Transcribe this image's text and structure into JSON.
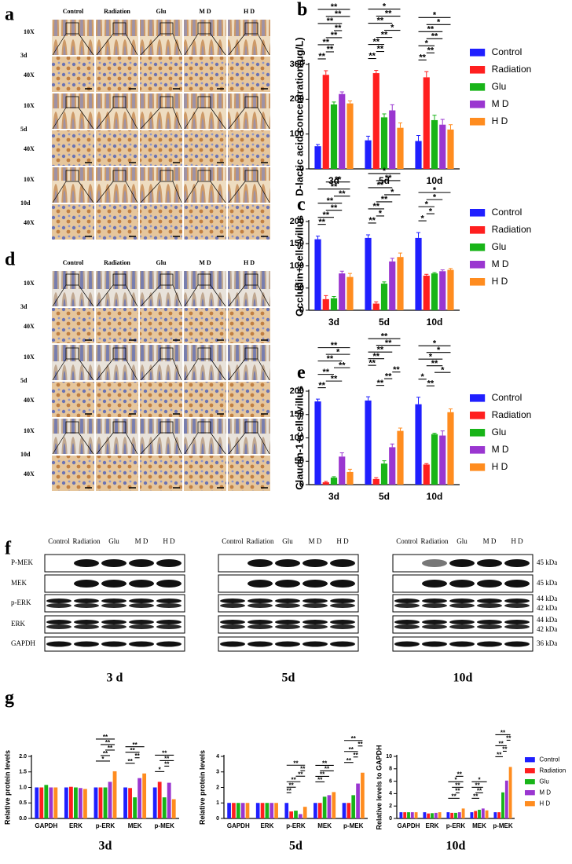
{
  "panel_labels": [
    "a",
    "b",
    "c",
    "d",
    "e",
    "f",
    "g"
  ],
  "histology": {
    "groups": [
      "Control",
      "Radiation",
      "Glu",
      "M D",
      "H D"
    ],
    "timepoints": [
      "3d",
      "5d",
      "10d"
    ],
    "magnifications": [
      "10X",
      "40X"
    ]
  },
  "western": {
    "groups": [
      "Control",
      "Radiation",
      "Glu",
      "M D",
      "H D"
    ],
    "proteins": [
      "P-MEK",
      "MEK",
      "p-ERK",
      "ERK",
      "GAPDH"
    ],
    "sizes": [
      "45 kDa",
      "45 kDa",
      "44 kDa",
      "42 kDa",
      "44 kDa",
      "42 kDa",
      "36 kDa"
    ],
    "timepoints": [
      "3 d",
      "5d",
      "10d"
    ]
  },
  "chart_data": [
    {
      "type": "bar",
      "y_label": "D-lactic acid concentration(μg/L)",
      "categories": [
        "3d",
        "5d",
        "10d"
      ],
      "series": [
        {
          "name": "Control",
          "color": "#1f1fff",
          "values": [
            65,
            82,
            80
          ],
          "errors": [
            5,
            12,
            16
          ]
        },
        {
          "name": "Radiation",
          "color": "#ff1f1f",
          "values": [
            270,
            275,
            263
          ],
          "errors": [
            12,
            8,
            16
          ]
        },
        {
          "name": "Glu",
          "color": "#18b418",
          "values": [
            185,
            148,
            140
          ],
          "errors": [
            7,
            10,
            14
          ]
        },
        {
          "name": "M D",
          "color": "#9a36d0",
          "values": [
            215,
            168,
            127
          ],
          "errors": [
            6,
            16,
            15
          ]
        },
        {
          "name": "H D",
          "color": "#ff8c1f",
          "values": [
            188,
            118,
            113
          ],
          "errors": [
            7,
            14,
            14
          ]
        }
      ],
      "ylim": [
        0,
        300
      ],
      "yticks": [
        0,
        100,
        200,
        300
      ],
      "legend": "right",
      "annotations": [
        [
          "3d",
          "Control",
          "Radiation",
          "**"
        ],
        [
          "3d",
          "Radiation",
          "Glu",
          "**"
        ],
        [
          "3d",
          "Control",
          "Glu",
          "**"
        ],
        [
          "3d",
          "Radiation",
          "M D",
          "**"
        ],
        [
          "3d",
          "Glu",
          "M D",
          "**"
        ],
        [
          "3d",
          "Control",
          "M D",
          "**"
        ],
        [
          "3d",
          "Radiation",
          "H D",
          "**"
        ],
        [
          "3d",
          "Control",
          "H D",
          "**"
        ],
        [
          "5d",
          "Control",
          "Radiation",
          "**"
        ],
        [
          "5d",
          "Radiation",
          "Glu",
          "**"
        ],
        [
          "5d",
          "Control",
          "Glu",
          "**"
        ],
        [
          "5d",
          "Radiation",
          "M D",
          "**"
        ],
        [
          "5d",
          "Glu",
          "H D",
          "*"
        ],
        [
          "5d",
          "Control",
          "M D",
          "**"
        ],
        [
          "5d",
          "Radiation",
          "H D",
          "**"
        ],
        [
          "5d",
          "Control",
          "H D",
          "*"
        ],
        [
          "10d",
          "Control",
          "Radiation",
          "**"
        ],
        [
          "10d",
          "Radiation",
          "Glu",
          "**"
        ],
        [
          "10d",
          "Control",
          "Glu",
          "*"
        ],
        [
          "10d",
          "Radiation",
          "M D",
          "**"
        ],
        [
          "10d",
          "Control",
          "M D",
          "**"
        ],
        [
          "10d",
          "Radiation",
          "H D",
          "*"
        ],
        [
          "10d",
          "Control",
          "H D",
          "*"
        ]
      ]
    },
    {
      "type": "bar",
      "y_label": "Occludin+cells/villus",
      "categories": [
        "3d",
        "5d",
        "10d"
      ],
      "series": [
        {
          "name": "Control",
          "color": "#1f1fff",
          "values": [
            160,
            163,
            163
          ],
          "errors": [
            7,
            7,
            12
          ]
        },
        {
          "name": "Radiation",
          "color": "#ff1f1f",
          "values": [
            25,
            15,
            78
          ],
          "errors": [
            8,
            4,
            3
          ]
        },
        {
          "name": "Glu",
          "color": "#18b418",
          "values": [
            27,
            60,
            83
          ],
          "errors": [
            4,
            4,
            2
          ]
        },
        {
          "name": "M D",
          "color": "#9a36d0",
          "values": [
            83,
            110,
            88
          ],
          "errors": [
            5,
            7,
            3
          ]
        },
        {
          "name": "H D",
          "color": "#ff8c1f",
          "values": [
            75,
            120,
            91
          ],
          "errors": [
            8,
            9,
            3
          ]
        }
      ],
      "ylim": [
        0,
        200
      ],
      "yticks": [
        0,
        50,
        100,
        150,
        200
      ],
      "legend": "right",
      "annotations": [
        [
          "3d",
          "Control",
          "Radiation",
          "**"
        ],
        [
          "3d",
          "Control",
          "Glu",
          "**"
        ],
        [
          "3d",
          "Radiation",
          "M D",
          "**"
        ],
        [
          "3d",
          "Control",
          "M D",
          "**"
        ],
        [
          "3d",
          "Glu",
          "H D",
          "**"
        ],
        [
          "3d",
          "Control",
          "H D",
          "**"
        ],
        [
          "3d",
          "Radiation",
          "H D",
          "**"
        ],
        [
          "5d",
          "Control",
          "Radiation",
          "**"
        ],
        [
          "5d",
          "Radiation",
          "Glu",
          "*"
        ],
        [
          "5d",
          "Control",
          "Glu",
          "**"
        ],
        [
          "5d",
          "Radiation",
          "M D",
          "**"
        ],
        [
          "5d",
          "Glu",
          "H D",
          "*"
        ],
        [
          "5d",
          "Control",
          "M D",
          "**"
        ],
        [
          "5d",
          "Radiation",
          "H D",
          "**"
        ],
        [
          "5d",
          "Control",
          "H D",
          "*"
        ],
        [
          "10d",
          "Control",
          "Radiation",
          "*"
        ],
        [
          "10d",
          "Radiation",
          "Glu",
          "*"
        ],
        [
          "10d",
          "Control",
          "Glu",
          "*"
        ],
        [
          "10d",
          "Radiation",
          "M D",
          "*"
        ],
        [
          "10d",
          "Control",
          "H D",
          "*"
        ]
      ]
    },
    {
      "type": "bar",
      "y_label": "Claudin-1+cells/villus",
      "categories": [
        "3d",
        "5d",
        "10d"
      ],
      "series": [
        {
          "name": "Control",
          "color": "#1f1fff",
          "values": [
            178,
            180,
            172
          ],
          "errors": [
            5,
            8,
            15
          ]
        },
        {
          "name": "Radiation",
          "color": "#ff1f1f",
          "values": [
            5,
            12,
            43
          ],
          "errors": [
            2,
            3,
            2
          ]
        },
        {
          "name": "Glu",
          "color": "#18b418",
          "values": [
            15,
            45,
            108
          ],
          "errors": [
            2,
            6,
            2
          ]
        },
        {
          "name": "M D",
          "color": "#9a36d0",
          "values": [
            60,
            80,
            105
          ],
          "errors": [
            8,
            7,
            10
          ]
        },
        {
          "name": "H D",
          "color": "#ff8c1f",
          "values": [
            27,
            115,
            155
          ],
          "errors": [
            6,
            6,
            7
          ]
        }
      ],
      "ylim": [
        0,
        200
      ],
      "yticks": [
        0,
        50,
        100,
        150,
        200
      ],
      "legend": "right",
      "annotations": [
        [
          "3d",
          "Control",
          "Radiation",
          "**"
        ],
        [
          "3d",
          "Radiation",
          "M D",
          "**"
        ],
        [
          "3d",
          "Control",
          "Glu",
          "**"
        ],
        [
          "3d",
          "Glu",
          "H D",
          "**"
        ],
        [
          "3d",
          "Control",
          "M D",
          "**"
        ],
        [
          "3d",
          "Radiation",
          "H D",
          "*"
        ],
        [
          "3d",
          "Control",
          "H D",
          "**"
        ],
        [
          "5d",
          "Radiation",
          "Glu",
          "**"
        ],
        [
          "5d",
          "Glu",
          "M D",
          "**"
        ],
        [
          "5d",
          "M D",
          "H D",
          "**"
        ],
        [
          "5d",
          "Control",
          "Radiation",
          "**"
        ],
        [
          "5d",
          "Control",
          "Glu",
          "**"
        ],
        [
          "5d",
          "Control",
          "M D",
          "**"
        ],
        [
          "5d",
          "Radiation",
          "H D",
          "**"
        ],
        [
          "5d",
          "Control",
          "H D",
          "**"
        ],
        [
          "10d",
          "Radiation",
          "Glu",
          "**"
        ],
        [
          "10d",
          "Control",
          "Radiation",
          "*"
        ],
        [
          "10d",
          "Glu",
          "H D",
          "*"
        ],
        [
          "10d",
          "Radiation",
          "M D",
          "**"
        ],
        [
          "10d",
          "Control",
          "M D",
          "*"
        ],
        [
          "10d",
          "Radiation",
          "H D",
          "*"
        ],
        [
          "10d",
          "Control",
          "H D",
          "*"
        ]
      ]
    },
    {
      "type": "bar",
      "title": "3d",
      "y_label": "Relative protein levels",
      "categories": [
        "GAPDH",
        "ERK",
        "p-ERK",
        "MEK",
        "p-MEK"
      ],
      "series": [
        {
          "name": "Control",
          "color": "#1f1fff",
          "values": [
            1.0,
            1.0,
            1.0,
            1.0,
            1.0
          ]
        },
        {
          "name": "Radiation",
          "color": "#ff1f1f",
          "values": [
            1.0,
            1.02,
            1.0,
            0.98,
            1.18
          ]
        },
        {
          "name": "Glu",
          "color": "#18b418",
          "values": [
            1.08,
            1.0,
            1.0,
            0.68,
            0.68
          ]
        },
        {
          "name": "M D",
          "color": "#9a36d0",
          "values": [
            1.0,
            0.98,
            1.18,
            1.3,
            1.15
          ]
        },
        {
          "name": "H D",
          "color": "#ff8c1f",
          "values": [
            1.0,
            0.95,
            1.52,
            1.45,
            0.62
          ]
        }
      ],
      "ylim": [
        0,
        2
      ],
      "yticks": [
        {
          "value": 0,
          "label": "0.0"
        },
        {
          "value": 0.5,
          "label": "0.5"
        },
        {
          "value": 1,
          "label": "1.0"
        },
        {
          "value": 1.5,
          "label": "1.5"
        },
        {
          "value": 2,
          "label": "2.0"
        }
      ],
      "legend": "none",
      "annotations": [
        [
          "p-ERK",
          "Control",
          "M D",
          "*"
        ],
        [
          "p-ERK",
          "Radiation",
          "M D",
          "**"
        ],
        [
          "p-ERK",
          "Glu",
          "H D",
          "**"
        ],
        [
          "p-ERK",
          "Radiation",
          "H D",
          "**"
        ],
        [
          "p-ERK",
          "Control",
          "H D",
          "**"
        ],
        [
          "MEK",
          "Control",
          "Glu",
          "**"
        ],
        [
          "MEK",
          "Glu",
          "M D",
          "**"
        ],
        [
          "MEK",
          "Control",
          "M D",
          "**"
        ],
        [
          "MEK",
          "Control",
          "H D",
          "**"
        ],
        [
          "p-MEK",
          "Control",
          "Glu",
          "*"
        ],
        [
          "p-MEK",
          "Glu",
          "M D",
          "**"
        ],
        [
          "p-MEK",
          "Radiation",
          "H D",
          "**"
        ],
        [
          "p-MEK",
          "Control",
          "H D",
          "**"
        ]
      ]
    },
    {
      "type": "bar",
      "title": "5d",
      "y_label": "Relative protein levels",
      "categories": [
        "GAPDH",
        "ERK",
        "p-ERK",
        "MEK",
        "p-MEK"
      ],
      "series": [
        {
          "name": "Control",
          "color": "#1f1fff",
          "values": [
            1.0,
            1.0,
            1.0,
            1.0,
            1.0
          ]
        },
        {
          "name": "Radiation",
          "color": "#ff1f1f",
          "values": [
            1.0,
            1.0,
            0.45,
            1.0,
            1.0
          ]
        },
        {
          "name": "Glu",
          "color": "#18b418",
          "values": [
            1.0,
            1.0,
            0.5,
            1.4,
            1.5
          ]
        },
        {
          "name": "M D",
          "color": "#9a36d0",
          "values": [
            1.0,
            1.0,
            0.28,
            1.5,
            2.25
          ]
        },
        {
          "name": "H D",
          "color": "#ff8c1f",
          "values": [
            1.0,
            1.0,
            0.75,
            1.7,
            2.95
          ]
        }
      ],
      "ylim": [
        0,
        4
      ],
      "yticks": [
        0,
        1,
        2,
        3,
        4
      ],
      "legend": "none",
      "annotations": [
        [
          "p-ERK",
          "Control",
          "Radiation",
          "**"
        ],
        [
          "p-ERK",
          "Control",
          "Glu",
          "**"
        ],
        [
          "p-ERK",
          "Control",
          "M D",
          "**"
        ],
        [
          "p-ERK",
          "Glu",
          "H D",
          "**"
        ],
        [
          "p-ERK",
          "M D",
          "H D",
          "**"
        ],
        [
          "p-ERK",
          "Control",
          "H D",
          "**"
        ],
        [
          "MEK",
          "Control",
          "Glu",
          "**"
        ],
        [
          "MEK",
          "Control",
          "M D",
          "**"
        ],
        [
          "MEK",
          "Radiation",
          "H D",
          "**"
        ],
        [
          "MEK",
          "Control",
          "H D",
          "**"
        ],
        [
          "p-MEK",
          "Control",
          "Glu",
          "**"
        ],
        [
          "p-MEK",
          "Glu",
          "M D",
          "**"
        ],
        [
          "p-MEK",
          "Control",
          "M D",
          "**"
        ],
        [
          "p-MEK",
          "M D",
          "H D",
          "**"
        ],
        [
          "p-MEK",
          "Control",
          "H D",
          "**"
        ]
      ]
    },
    {
      "type": "bar",
      "title": "10d",
      "y_label": "Relative levels to GAPDH",
      "categories": [
        "GAPDH",
        "ERK",
        "p-ERK",
        "MEK",
        "p-MEK"
      ],
      "series": [
        {
          "name": "Control",
          "color": "#1f1fff",
          "values": [
            1.0,
            1.0,
            1.0,
            1.0,
            1.0
          ]
        },
        {
          "name": "Radiation",
          "color": "#ff1f1f",
          "values": [
            1.0,
            0.8,
            0.9,
            1.2,
            1.0
          ]
        },
        {
          "name": "Glu",
          "color": "#18b418",
          "values": [
            1.0,
            0.85,
            0.9,
            1.4,
            4.2
          ]
        },
        {
          "name": "M D",
          "color": "#9a36d0",
          "values": [
            1.0,
            0.9,
            1.0,
            1.6,
            6.1
          ]
        },
        {
          "name": "H D",
          "color": "#ff8c1f",
          "values": [
            1.0,
            1.0,
            1.6,
            1.3,
            8.3
          ]
        }
      ],
      "ylim": [
        0,
        10
      ],
      "yticks": [
        0,
        2,
        4,
        6,
        8,
        10
      ],
      "legend": "right",
      "annotations": [
        [
          "p-ERK",
          "Control",
          "M D",
          "**"
        ],
        [
          "p-ERK",
          "Glu",
          "M D",
          "**"
        ],
        [
          "p-ERK",
          "Radiation",
          "H D",
          "**"
        ],
        [
          "p-ERK",
          "Control",
          "H D",
          "*"
        ],
        [
          "p-ERK",
          "Glu",
          "H D",
          "**"
        ],
        [
          "MEK",
          "Control",
          "Glu",
          "**"
        ],
        [
          "MEK",
          "Radiation",
          "M D",
          "**"
        ],
        [
          "MEK",
          "Control",
          "M D",
          "**"
        ],
        [
          "MEK",
          "Control",
          "H D",
          "*"
        ],
        [
          "p-MEK",
          "Control",
          "Glu",
          "**"
        ],
        [
          "p-MEK",
          "Glu",
          "M D",
          "**"
        ],
        [
          "p-MEK",
          "Control",
          "M D",
          "**"
        ],
        [
          "p-MEK",
          "M D",
          "H D",
          "**"
        ],
        [
          "p-MEK",
          "Control",
          "H D",
          "**"
        ]
      ]
    }
  ]
}
